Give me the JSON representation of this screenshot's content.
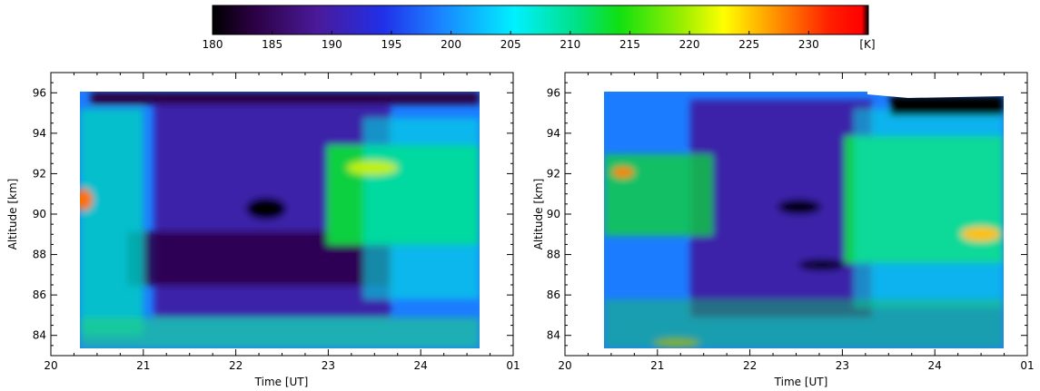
{
  "colorbar": {
    "ticks": [
      "180",
      "185",
      "190",
      "195",
      "200",
      "205",
      "210",
      "215",
      "220",
      "225",
      "230"
    ],
    "unit": "[K]",
    "range": [
      180,
      235
    ],
    "stops": [
      {
        "t": 0.0,
        "color": "#000000"
      },
      {
        "t": 0.06,
        "color": "#2a0040"
      },
      {
        "t": 0.16,
        "color": "#4a1a9a"
      },
      {
        "t": 0.26,
        "color": "#2030e8"
      },
      {
        "t": 0.34,
        "color": "#1c7cff"
      },
      {
        "t": 0.46,
        "color": "#00f0ff"
      },
      {
        "t": 0.56,
        "color": "#00e080"
      },
      {
        "t": 0.62,
        "color": "#10e010"
      },
      {
        "t": 0.72,
        "color": "#a0f000"
      },
      {
        "t": 0.78,
        "color": "#ffff00"
      },
      {
        "t": 0.86,
        "color": "#ff9000"
      },
      {
        "t": 0.94,
        "color": "#ff2000"
      },
      {
        "t": 0.99,
        "color": "#ff0000"
      },
      {
        "t": 1.0,
        "color": "#000000"
      }
    ]
  },
  "chart_data": [
    {
      "type": "heatmap",
      "xlabel": "Time [UT]",
      "ylabel": "Altitude [km]",
      "xlim": [
        20,
        25
      ],
      "ylim": [
        83,
        97
      ],
      "x_ticks": [
        "20",
        "21",
        "22",
        "23",
        "24",
        "01"
      ],
      "y_ticks": [
        "84",
        "86",
        "88",
        "90",
        "92",
        "94",
        "96"
      ],
      "data_extent": {
        "x": [
          20.38,
          24.65
        ],
        "y": [
          83.4,
          96.0
        ]
      },
      "regions": [
        {
          "label": "warm band",
          "x_center": 23.7,
          "y_center": 91.0,
          "value_k": 212
        },
        {
          "label": "cold core",
          "x_center": 22.4,
          "y_center": 90.0,
          "value_k": 182
        },
        {
          "label": "warm spot",
          "x_center": 20.45,
          "y_center": 90.6,
          "value_k": 220
        },
        {
          "label": "cold top",
          "x_center": 21.5,
          "y_center": 95.8,
          "value_k": 182
        }
      ]
    },
    {
      "type": "heatmap",
      "xlabel": "Time [UT]",
      "ylabel": "Altitude [km]",
      "xlim": [
        20,
        25
      ],
      "ylim": [
        83,
        97
      ],
      "x_ticks": [
        "20",
        "21",
        "22",
        "23",
        "24",
        "01"
      ],
      "y_ticks": [
        "84",
        "86",
        "88",
        "90",
        "92",
        "94",
        "96"
      ],
      "data_extent": {
        "x": [
          20.38,
          24.65
        ],
        "y": [
          83.4,
          96.0
        ]
      },
      "regions": [
        {
          "label": "warm band",
          "x_center": 24.0,
          "y_center": 89.5,
          "value_k": 215
        },
        {
          "label": "cold core",
          "x_center": 22.5,
          "y_center": 90.3,
          "value_k": 183
        },
        {
          "label": "warm spot",
          "x_center": 20.55,
          "y_center": 91.9,
          "value_k": 222
        },
        {
          "label": "cold top",
          "x_center": 24.1,
          "y_center": 95.5,
          "value_k": 180
        }
      ]
    }
  ]
}
